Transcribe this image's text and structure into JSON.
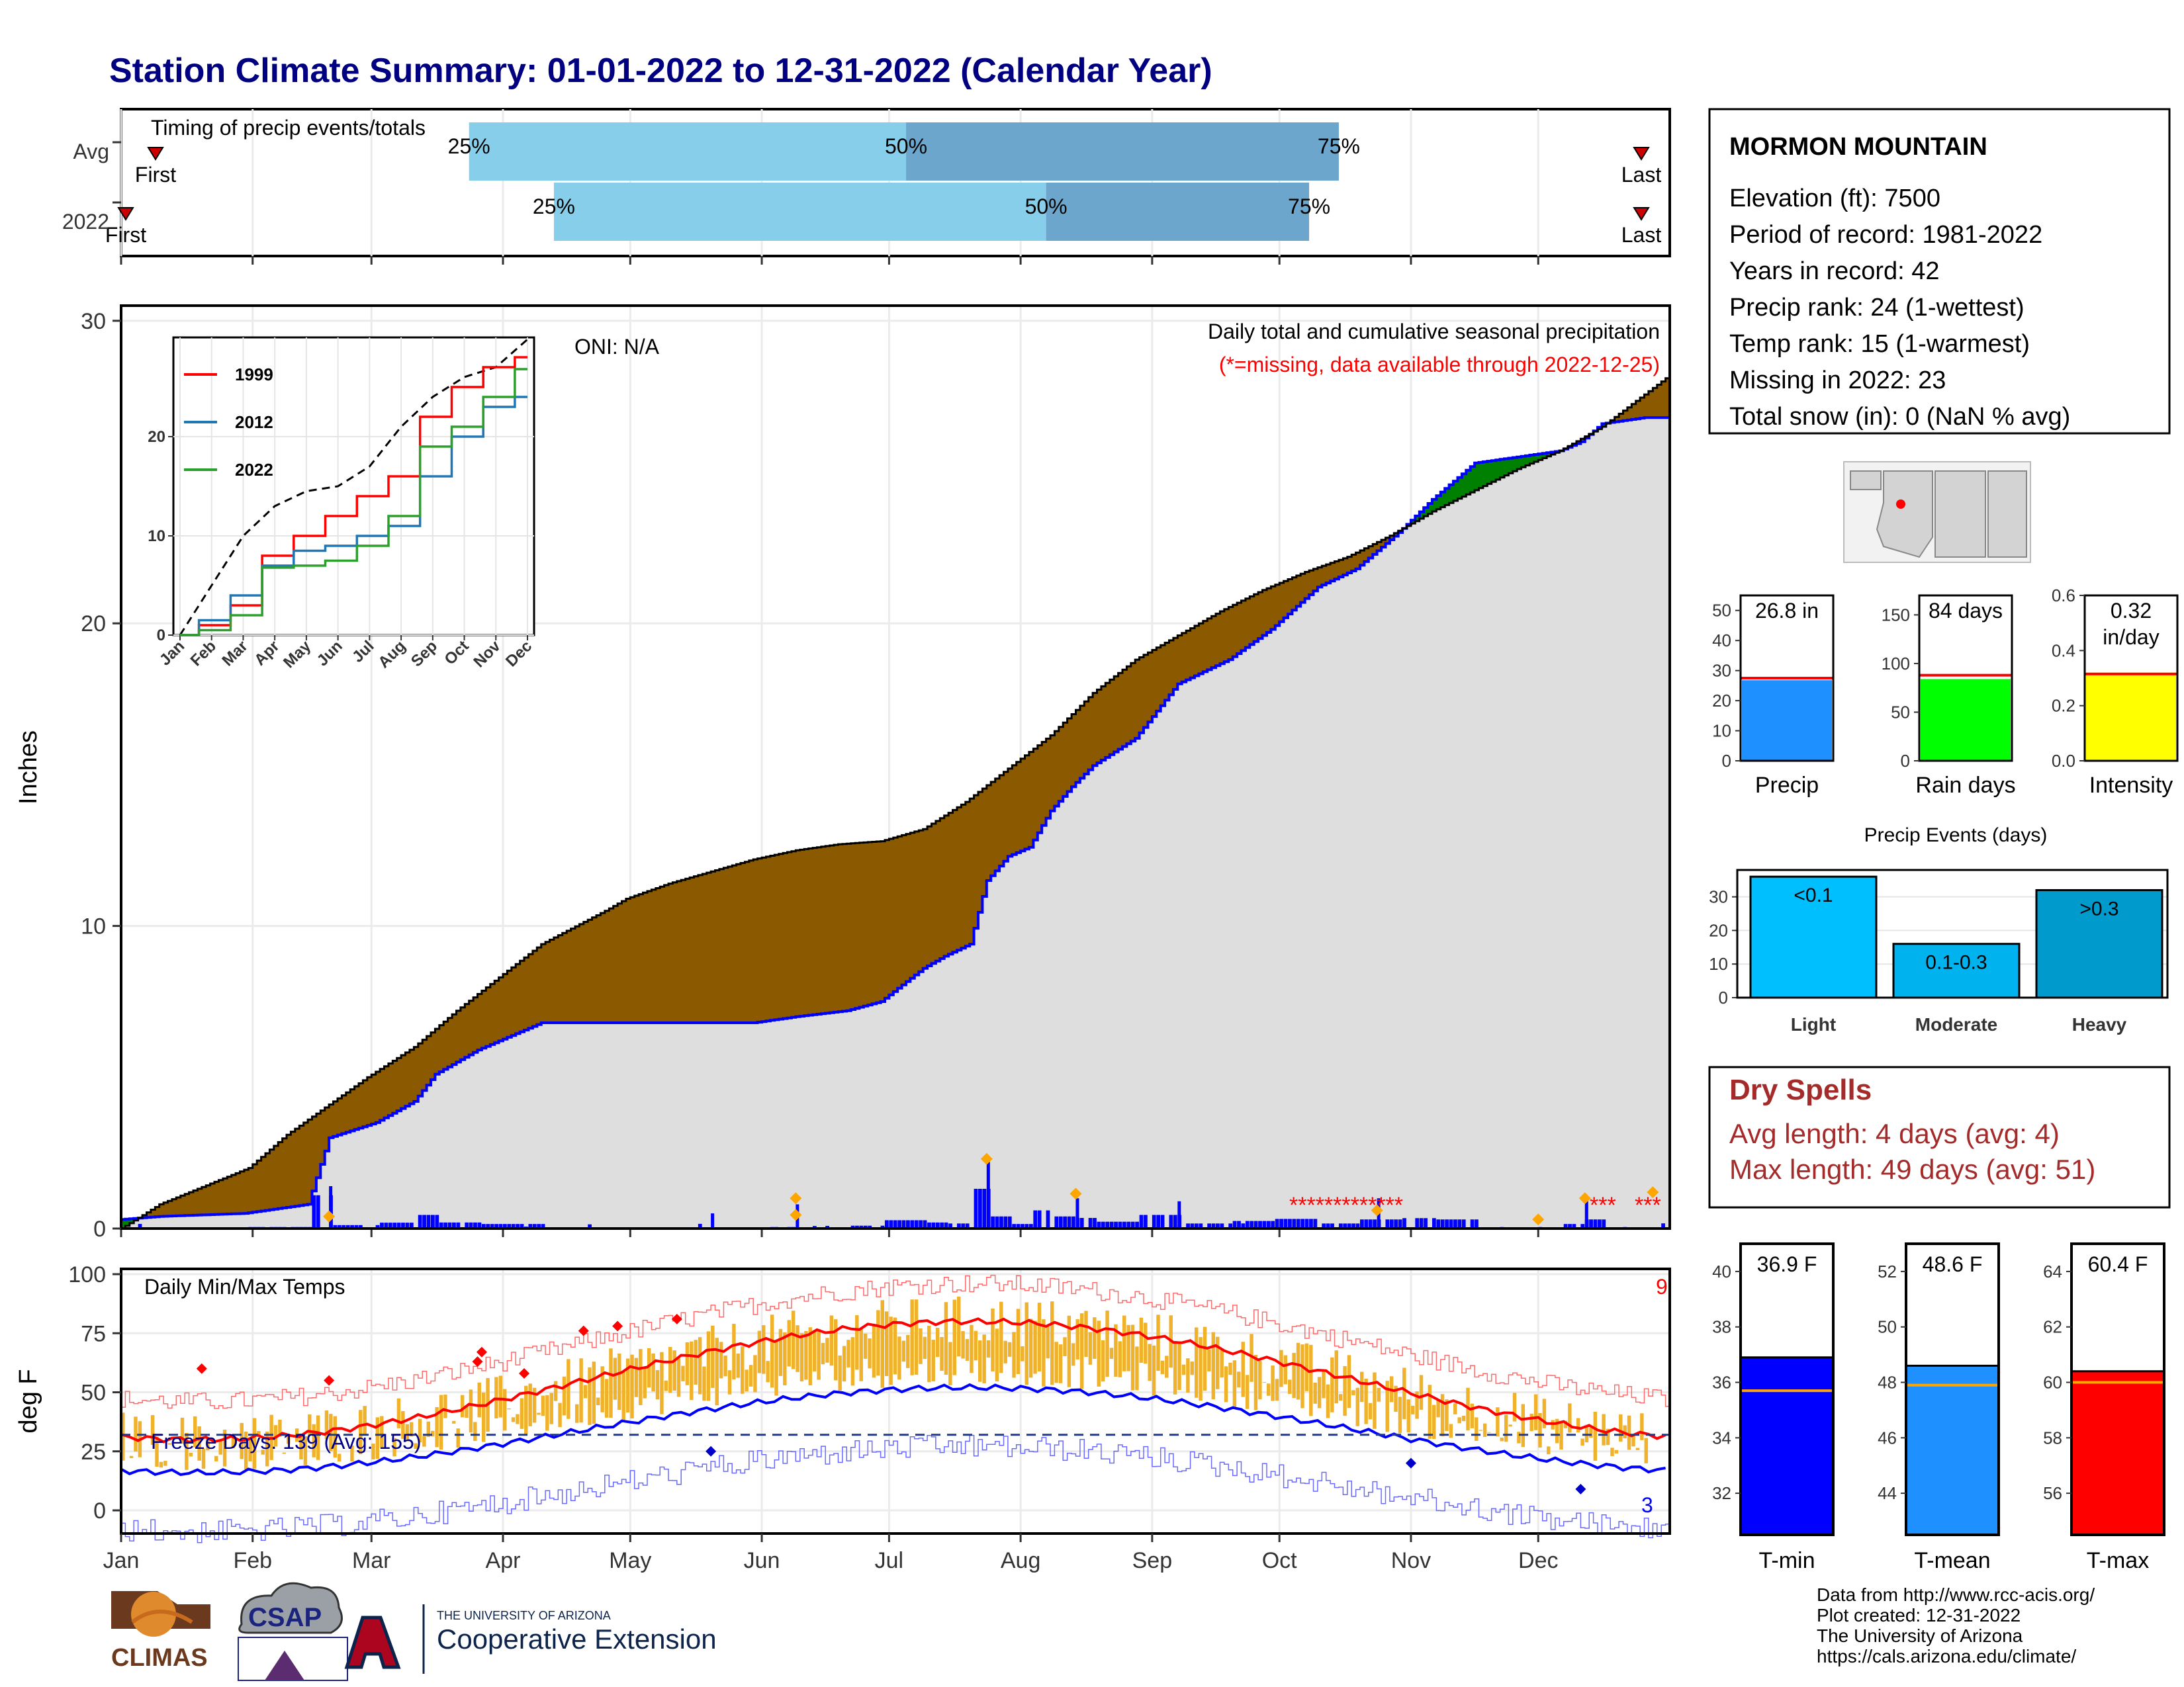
{
  "title": "Station Climate Summary: 01-01-2022 to 12-31-2022 (Calendar Year)",
  "months": [
    "Jan",
    "Feb",
    "Mar",
    "Apr",
    "May",
    "Jun",
    "Jul",
    "Aug",
    "Sep",
    "Oct",
    "Nov",
    "Dec"
  ],
  "colors": {
    "title": "#000080",
    "brown": "#8B5A00",
    "green": "#008000",
    "gray_fill": "#DEDEDE",
    "blue_line": "#0000FF",
    "light_blue": "#87CEEB",
    "mid_blue": "#6CA6CD",
    "temp_bar": "#F0B22A",
    "dry_red": "#A52A2A",
    "missing_red": "#FF0000",
    "marker_orange": "#FFA500"
  },
  "timing": {
    "title": "Timing of precip events/totals",
    "rows": [
      {
        "label": "Avg",
        "first": "First",
        "last": "Last",
        "p25": "25%",
        "p50": "50%",
        "p75": "75%",
        "doy25": 83,
        "doy50": 186,
        "doy75": 288
      },
      {
        "label": "2022",
        "first": "First",
        "last": "Last",
        "p25": "25%",
        "p50": "50%",
        "p75": "75%",
        "doy25": 103,
        "doy50": 219,
        "doy75": 281
      }
    ]
  },
  "precip_panel": {
    "ylabel": "Inches",
    "y_ticks": [
      "0",
      "10",
      "20",
      "30"
    ],
    "ylim": [
      0,
      30.5
    ],
    "note1": "Daily total and cumulative seasonal precipitation",
    "note2": "(*=missing, data available through 2022-12-25)",
    "oni": "ONI: N/A",
    "missing_marks": [
      "*************",
      "***",
      "***"
    ]
  },
  "inset": {
    "y_ticks": [
      "0",
      "10",
      "20"
    ],
    "months": [
      "Jan",
      "Feb",
      "Mar",
      "Apr",
      "May",
      "Jun",
      "Jul",
      "Aug",
      "Sep",
      "Oct",
      "Nov",
      "Dec"
    ],
    "legend": [
      {
        "name": "1999",
        "color": "#FF0000"
      },
      {
        "name": "2012",
        "color": "#1F77B4"
      },
      {
        "name": "2022",
        "color": "#2CA02C"
      }
    ]
  },
  "station": {
    "name": "MORMON MOUNTAIN",
    "lines": [
      "Elevation (ft): 7500",
      "Period of record: 1981-2022",
      "Years in record: 42",
      "Precip rank: 24 (1-wettest)",
      "Temp rank: 15 (1-warmest)",
      "Missing in 2022: 23",
      "Total snow (in): 0 (NaN % avg)"
    ]
  },
  "summary_bars": [
    {
      "label": "Precip",
      "value": 26.8,
      "avg": 27.5,
      "text": "26.8 in",
      "ticks": [
        "0",
        "10",
        "20",
        "30",
        "40",
        "50"
      ],
      "max": 55,
      "color": "#1E90FF"
    },
    {
      "label": "Rain days",
      "value": 84,
      "avg": 88,
      "text": "84 days",
      "ticks": [
        "0",
        "50",
        "100",
        "150"
      ],
      "max": 170,
      "color": "#00FF00"
    },
    {
      "label": "Intensity",
      "value": 0.32,
      "avg": 0.315,
      "text": "0.32",
      "text2": "in/day",
      "ticks": [
        "0.0",
        "0.2",
        "0.4",
        "0.6"
      ],
      "max": 0.6,
      "color": "#FFFF00"
    }
  ],
  "precip_events": {
    "title": "Precip Events (days)",
    "ticks": [
      "0",
      "10",
      "20",
      "30"
    ],
    "max": 38,
    "bars": [
      {
        "label": "Light",
        "value": 36,
        "text": "<0.1",
        "color": "#00BFFF"
      },
      {
        "label": "Moderate",
        "value": 16,
        "text": "0.1-0.3",
        "color": "#00B2EE"
      },
      {
        "label": "Heavy",
        "value": 32,
        "text": ">0.3",
        "color": "#009ACD"
      }
    ]
  },
  "dry_spells": {
    "title": "Dry Spells",
    "avg": "Avg length: 4 days (avg: 4)",
    "max": "Max length: 49 days (avg: 51)"
  },
  "temp_panel": {
    "ylabel": "deg F",
    "y_ticks": [
      "0",
      "25",
      "50",
      "75",
      "100"
    ],
    "label": "Daily Min/Max Temps",
    "freeze": "Freeze Days: 139 (Avg: 155)",
    "count_top": "9",
    "count_bottom": "3"
  },
  "temp_bars": [
    {
      "label": "T-min",
      "value": 36.9,
      "avg": 35.7,
      "text": "36.9 F",
      "ticks": [
        "32",
        "34",
        "36",
        "38",
        "40"
      ],
      "min": 30.5,
      "max": 41,
      "color": "#0000FF"
    },
    {
      "label": "T-mean",
      "value": 48.6,
      "avg": 47.9,
      "text": "48.6 F",
      "ticks": [
        "44",
        "46",
        "48",
        "50",
        "52"
      ],
      "min": 42.5,
      "max": 53,
      "color": "#1E90FF"
    },
    {
      "label": "T-max",
      "value": 60.4,
      "avg": 60.0,
      "text": "60.4 F",
      "ticks": [
        "56",
        "58",
        "60",
        "62",
        "64"
      ],
      "min": 54.5,
      "max": 65,
      "color": "#FF0000"
    }
  ],
  "footer": {
    "lines": [
      "Data from http://www.rcc-acis.org/",
      "Plot created: 12-31-2022",
      "The University of Arizona",
      "https://cals.arizona.edu/climate/"
    ],
    "logo_climas": "CLIMAS",
    "logo_csap": "CSAP",
    "logo_ua_small": "THE UNIVERSITY OF ARIZONA",
    "logo_ua_big": "Cooperative Extension"
  },
  "chart_data": [
    {
      "type": "area",
      "title": "Daily total and cumulative seasonal precipitation",
      "ylabel": "Inches",
      "ylim": [
        0,
        30.5
      ],
      "x_unit": "day of year",
      "series": [
        {
          "name": "",
          "x": [
            1,
            10,
            31,
            40,
            59,
            70,
            80,
            90,
            100,
            115,
            120,
            130,
            140,
            150,
            160,
            170,
            180,
            190,
            200,
            210,
            220,
            230,
            240,
            250,
            260,
            270,
            280,
            290,
            300,
            310,
            320,
            330,
            340,
            350,
            365
          ],
          "values": [
            0,
            0.8,
            2.0,
            3.1,
            5.0,
            6.0,
            7.2,
            8.3,
            9.4,
            10.5,
            10.9,
            11.4,
            11.8,
            12.2,
            12.5,
            12.7,
            12.8,
            13.2,
            14.1,
            15.2,
            16.3,
            17.7,
            18.8,
            19.6,
            20.4,
            21.1,
            21.7,
            22.2,
            22.9,
            23.7,
            24.4,
            25.1,
            25.7,
            26.5,
            28.1
          ]
        },
        {
          "name": "",
          "x": [
            1,
            10,
            30,
            45,
            50,
            61,
            70,
            75,
            85,
            95,
            100,
            120,
            135,
            150,
            160,
            172,
            180,
            190,
            195,
            201,
            205,
            210,
            215,
            220,
            225,
            230,
            240,
            250,
            262,
            272,
            283,
            292,
            302,
            310,
            320,
            330,
            340,
            345,
            350,
            360
          ],
          "values": [
            0.3,
            0.4,
            0.5,
            0.8,
            3.0,
            3.5,
            4.2,
            5.1,
            5.9,
            6.5,
            6.8,
            6.8,
            6.8,
            6.8,
            7.0,
            7.2,
            7.5,
            8.6,
            9.0,
            9.4,
            11.5,
            12.3,
            12.6,
            13.8,
            14.6,
            15.3,
            16.2,
            18.0,
            18.8,
            19.8,
            21.2,
            21.8,
            23.0,
            24.1,
            25.3,
            25.5,
            25.7,
            26.0,
            26.6,
            26.8
          ]
        }
      ]
    },
    {
      "type": "line",
      "title": "",
      "ylim": [
        0,
        30
      ],
      "x": [
        "Jan",
        "Feb",
        "Mar",
        "Apr",
        "May",
        "Jun",
        "Jul",
        "Aug",
        "Sep",
        "Oct",
        "Nov",
        "Dec"
      ],
      "series": [
        {
          "name": "1999",
          "values": [
            0,
            1,
            3,
            8,
            10,
            12,
            14,
            16,
            22,
            25,
            27,
            28
          ]
        },
        {
          "name": "2012",
          "values": [
            0,
            1.5,
            4,
            7,
            8.5,
            9,
            10,
            11,
            16,
            20,
            23,
            24
          ]
        },
        {
          "name": "2022",
          "values": [
            0,
            0.5,
            2,
            6.8,
            7,
            7.5,
            9,
            12,
            19,
            21,
            24,
            26.8
          ]
        }
      ]
    },
    {
      "type": "bar",
      "categories": [
        "Light",
        "Moderate",
        "Heavy"
      ],
      "values": [
        36,
        16,
        32
      ],
      "title": "Precip Events (days)"
    },
    {
      "type": "bar",
      "categories": [
        "T-min",
        "T-mean",
        "T-max"
      ],
      "values": [
        36.9,
        48.6,
        60.4
      ]
    }
  ]
}
